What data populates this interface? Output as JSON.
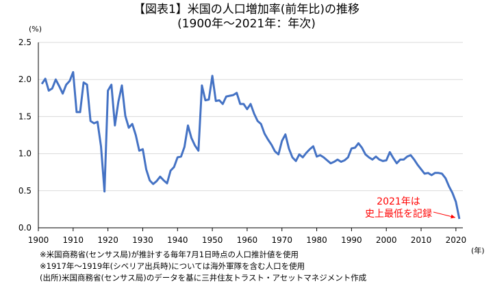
{
  "title_line1": "【図表1】米国の人口増加率(前年比)の推移",
  "title_line2": "(1900年～2021年：年次)",
  "notes": [
    "※米国商務省(センサス局)が推計する毎年7月1日時点の人口推計値を使用",
    "※1917年～1919年(シベリア出兵時)については海外軍隊を含む人口を使用",
    "(出所)米国商務省(センサス局)のデータを基に三井住友トラスト・アセットマネジメント作成"
  ],
  "chart_data": {
    "type": "line",
    "title": "【図表1】米国の人口増加率(前年比)の推移",
    "subtitle": "(1900年～2021年：年次)",
    "ylabel_unit": "(%)",
    "xlabel_unit": "(年)",
    "xlim": [
      1900,
      2021
    ],
    "ylim": [
      0,
      2.5
    ],
    "x_ticks": [
      1900,
      1910,
      1920,
      1930,
      1940,
      1950,
      1960,
      1970,
      1980,
      1990,
      2000,
      2010,
      2020
    ],
    "y_ticks": [
      "0.0",
      "0.5",
      "1.0",
      "1.5",
      "2.0",
      "2.5"
    ],
    "grid": "horizontal",
    "line_color": "#4472c4",
    "x": [
      1901,
      1902,
      1903,
      1904,
      1905,
      1906,
      1907,
      1908,
      1909,
      1910,
      1911,
      1912,
      1913,
      1914,
      1915,
      1916,
      1917,
      1918,
      1919,
      1920,
      1921,
      1922,
      1923,
      1924,
      1925,
      1926,
      1927,
      1928,
      1929,
      1930,
      1931,
      1932,
      1933,
      1934,
      1935,
      1936,
      1937,
      1938,
      1939,
      1940,
      1941,
      1942,
      1943,
      1944,
      1945,
      1946,
      1947,
      1948,
      1949,
      1950,
      1951,
      1952,
      1953,
      1954,
      1955,
      1956,
      1957,
      1958,
      1959,
      1960,
      1961,
      1962,
      1963,
      1964,
      1965,
      1966,
      1967,
      1968,
      1969,
      1970,
      1971,
      1972,
      1973,
      1974,
      1975,
      1976,
      1977,
      1978,
      1979,
      1980,
      1981,
      1982,
      1983,
      1984,
      1985,
      1986,
      1987,
      1988,
      1989,
      1990,
      1991,
      1992,
      1993,
      1994,
      1995,
      1996,
      1997,
      1998,
      1999,
      2000,
      2001,
      2002,
      2003,
      2004,
      2005,
      2006,
      2007,
      2008,
      2009,
      2010,
      2011,
      2012,
      2013,
      2014,
      2015,
      2016,
      2017,
      2018,
      2019,
      2020,
      2021
    ],
    "values": [
      1.94,
      2.01,
      1.85,
      1.88,
      2.0,
      1.91,
      1.81,
      1.93,
      1.98,
      2.1,
      1.56,
      1.56,
      1.96,
      1.93,
      1.44,
      1.41,
      1.43,
      1.1,
      0.49,
      1.85,
      1.93,
      1.38,
      1.7,
      1.92,
      1.51,
      1.35,
      1.4,
      1.25,
      1.04,
      1.06,
      0.79,
      0.64,
      0.59,
      0.63,
      0.69,
      0.64,
      0.6,
      0.77,
      0.82,
      0.95,
      0.96,
      1.09,
      1.38,
      1.21,
      1.11,
      1.04,
      1.92,
      1.72,
      1.73,
      2.05,
      1.71,
      1.72,
      1.67,
      1.77,
      1.78,
      1.79,
      1.82,
      1.67,
      1.67,
      1.6,
      1.67,
      1.54,
      1.44,
      1.4,
      1.27,
      1.19,
      1.12,
      1.03,
      0.99,
      1.17,
      1.26,
      1.07,
      0.95,
      0.9,
      0.99,
      0.95,
      1.01,
      1.06,
      1.1,
      0.96,
      0.98,
      0.95,
      0.91,
      0.87,
      0.89,
      0.92,
      0.89,
      0.91,
      0.95,
      1.07,
      1.08,
      1.14,
      1.08,
      0.99,
      0.95,
      0.92,
      0.96,
      0.92,
      0.9,
      0.91,
      1.02,
      0.94,
      0.87,
      0.92,
      0.92,
      0.96,
      0.98,
      0.92,
      0.85,
      0.79,
      0.73,
      0.74,
      0.71,
      0.74,
      0.74,
      0.73,
      0.67,
      0.56,
      0.47,
      0.35,
      0.12
    ],
    "annotation": {
      "lines": [
        "2021年は",
        "史上最低を記録"
      ],
      "color": "#ff0000"
    }
  }
}
